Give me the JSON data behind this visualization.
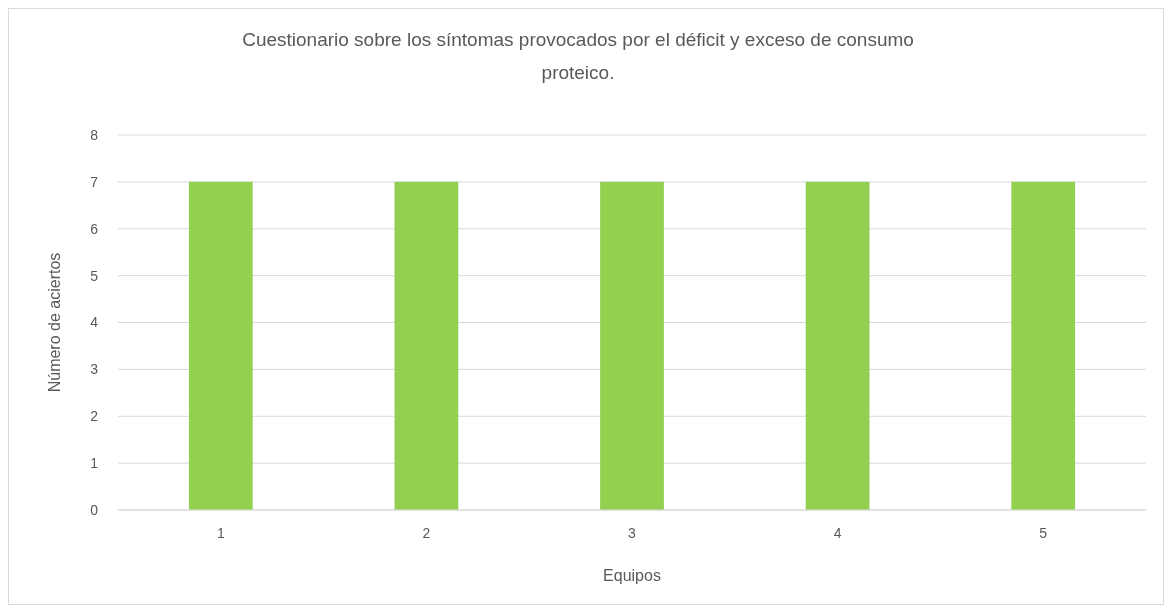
{
  "chart_data": {
    "type": "bar",
    "title": "Cuestionario sobre los síntomas provocados por el déficit y exceso de consumo proteico.",
    "xlabel": "Equipos",
    "ylabel": "Número de aciertos",
    "categories": [
      "1",
      "2",
      "3",
      "4",
      "5"
    ],
    "values": [
      7,
      7,
      7,
      7,
      7
    ],
    "color": "#92d050",
    "ylim": [
      0,
      8
    ],
    "yticks": [
      0,
      1,
      2,
      3,
      4,
      5,
      6,
      7,
      8
    ],
    "grid": "y"
  }
}
